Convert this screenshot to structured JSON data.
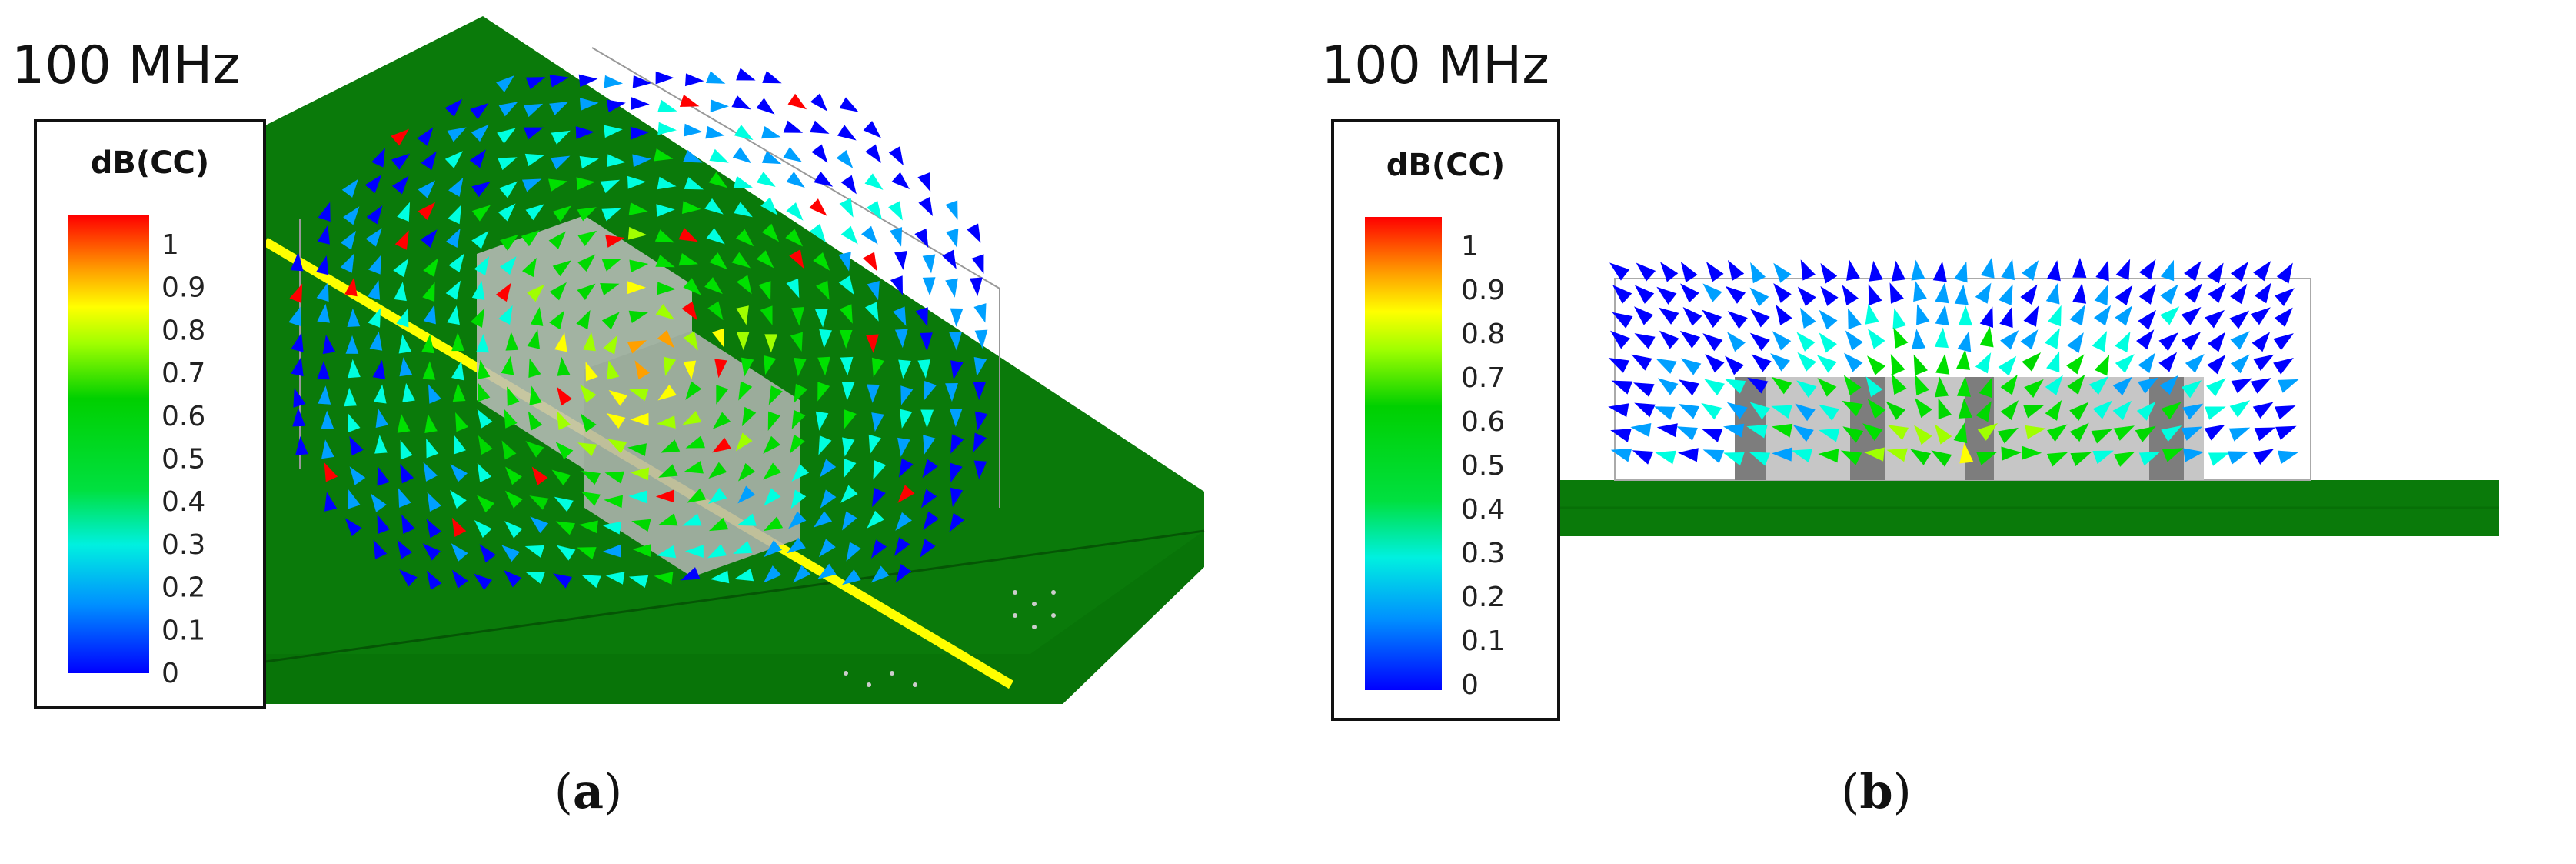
{
  "panels": [
    {
      "id": "a",
      "frequency_label": "100 MHz",
      "colorbar": {
        "title": "dB(CC)",
        "ticks": [
          "1",
          "0.9",
          "0.8",
          "0.7",
          "0.6",
          "0.5",
          "0.4",
          "0.3",
          "0.2",
          "0.1",
          "0"
        ],
        "min": 0,
        "max": 1
      },
      "caption_open": "(",
      "caption_letter": "a",
      "caption_close": ")",
      "view": "3D perspective"
    },
    {
      "id": "b",
      "frequency_label": "100 MHz",
      "colorbar": {
        "title": "dB(CC)",
        "ticks": [
          "1",
          "0.9",
          "0.8",
          "0.7",
          "0.6",
          "0.5",
          "0.4",
          "0.3",
          "0.2",
          "0.1",
          "0"
        ],
        "min": 0,
        "max": 1
      },
      "caption_open": "(",
      "caption_letter": "b",
      "caption_close": ")",
      "view": "side view"
    }
  ],
  "colors": {
    "board": "#0a7a0a",
    "board_edge": "#066406",
    "trace": "#ffff00",
    "component": "#bdbdbd",
    "component_dark": "#7a7a7a",
    "colormap": [
      "#0000ff",
      "#00a0ff",
      "#00ffe0",
      "#00e000",
      "#00d800",
      "#a0ff00",
      "#ffff00",
      "#ffa000",
      "#ff5000",
      "#ff0000"
    ]
  }
}
